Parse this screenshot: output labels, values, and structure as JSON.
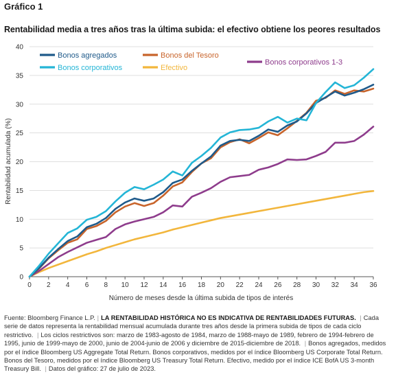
{
  "header": {
    "label": "Gráfico 1",
    "title": "Rentabilidad media a tres años tras la última subida: el efectivo obtiene los peores resultados"
  },
  "chart_data": {
    "type": "line",
    "xlabel": "Número de meses desde la última subida de tipos de interés",
    "ylabel": "Rentabilidad acumulada (%)",
    "xlim": [
      0,
      36
    ],
    "ylim": [
      0,
      40
    ],
    "xticks": [
      0,
      2,
      4,
      6,
      8,
      10,
      12,
      14,
      16,
      18,
      20,
      22,
      24,
      26,
      28,
      30,
      32,
      34,
      36
    ],
    "yticks": [
      0,
      5,
      10,
      15,
      20,
      25,
      30,
      35,
      40
    ],
    "grid": true,
    "legend": "top-left",
    "x": [
      0,
      1,
      2,
      3,
      4,
      5,
      6,
      7,
      8,
      9,
      10,
      11,
      12,
      13,
      14,
      15,
      16,
      17,
      18,
      19,
      20,
      21,
      22,
      23,
      24,
      25,
      26,
      27,
      28,
      29,
      30,
      31,
      32,
      33,
      34,
      35,
      36
    ],
    "series": [
      {
        "name": "Bonos agregados",
        "color": "#1f5a8a",
        "values": [
          0,
          1.5,
          3.3,
          4.8,
          6.2,
          7.0,
          8.6,
          9.2,
          10.2,
          11.8,
          12.9,
          13.6,
          13.2,
          13.6,
          14.7,
          16.3,
          16.9,
          18.4,
          19.7,
          20.9,
          22.8,
          23.6,
          23.8,
          23.6,
          24.5,
          25.6,
          25.2,
          26.3,
          27.0,
          28.4,
          30.2,
          31.2,
          32.2,
          31.5,
          32.0,
          32.6,
          33.4
        ]
      },
      {
        "name": "Bonos del Tesoro",
        "color": "#c8642b",
        "values": [
          0,
          1.4,
          3.2,
          4.6,
          5.9,
          6.5,
          8.3,
          8.8,
          9.7,
          11.2,
          12.2,
          12.8,
          12.3,
          12.8,
          14.1,
          15.7,
          16.4,
          18.2,
          19.7,
          20.6,
          22.5,
          23.4,
          23.9,
          23.2,
          24.1,
          25.1,
          24.6,
          25.8,
          27.1,
          28.5,
          30.6,
          31.1,
          32.4,
          31.8,
          32.4,
          32.2,
          32.7
        ]
      },
      {
        "name": "Bonos corporativos",
        "color": "#24b5d6",
        "values": [
          0,
          1.9,
          4.0,
          5.8,
          7.6,
          8.4,
          9.9,
          10.4,
          11.4,
          13.1,
          14.6,
          15.6,
          15.2,
          16.0,
          16.9,
          18.3,
          17.6,
          19.8,
          21.0,
          22.4,
          24.2,
          25.1,
          25.5,
          25.6,
          25.9,
          27.0,
          27.8,
          26.8,
          27.5,
          27.2,
          30.2,
          32.1,
          33.8,
          32.8,
          33.3,
          34.6,
          36.1
        ]
      },
      {
        "name": "Efectivo",
        "color": "#f2b63c",
        "values": [
          0,
          0.8,
          1.5,
          2.1,
          2.7,
          3.3,
          3.9,
          4.4,
          5.0,
          5.5,
          6.0,
          6.5,
          6.9,
          7.3,
          7.7,
          8.2,
          8.6,
          9.0,
          9.4,
          9.8,
          10.2,
          10.5,
          10.8,
          11.1,
          11.4,
          11.7,
          12.0,
          12.3,
          12.6,
          12.9,
          13.2,
          13.5,
          13.8,
          14.1,
          14.4,
          14.7,
          14.9
        ]
      },
      {
        "name": "Bonos corporativos 1-3",
        "color": "#8e3c8c",
        "values": [
          0,
          1.0,
          2.2,
          3.4,
          4.3,
          5.1,
          5.9,
          6.4,
          6.9,
          8.3,
          9.1,
          9.6,
          10.0,
          10.4,
          11.2,
          12.4,
          12.2,
          13.9,
          14.6,
          15.4,
          16.5,
          17.3,
          17.5,
          17.7,
          18.6,
          19.0,
          19.6,
          20.4,
          20.3,
          20.4,
          21.0,
          21.7,
          23.3,
          23.3,
          23.6,
          24.7,
          26.1
        ]
      }
    ]
  },
  "footer": {
    "source": "Fuente: Bloomberg Finance L.P.",
    "warning": "LA RENTABILIDAD HISTÓRICA NO ES INDICATIVA DE RENTABILIDADES FUTURAS.",
    "note1": "Cada serie de datos representa la rentabilidad mensual acumulada durante tres años desde la primera subida de tipos de cada ciclo restrictivo.",
    "note2": "Los ciclos restrictivos son: marzo de 1983-agosto de 1984, marzo de 1988-mayo de 1989, febrero de 1994-febrero de 1995, junio de 1999-mayo de 2000, junio de 2004-junio de 2006 y diciembre de 2015-diciembre de 2018.",
    "note3": "Bonos agregados, medidos por el índice Bloomberg US Aggregate Total Return. Bonos corporativos, medidos por el índice Bloomberg US Corporate Total Return. Bonos del Tesoro, medidos por el índice Bloomberg US Treasury Total Return. Efectivo, medido por el índice ICE BofA US 3-month Treasury Bill.",
    "date": "Datos del gráfico: 27 de julio de 2023."
  }
}
